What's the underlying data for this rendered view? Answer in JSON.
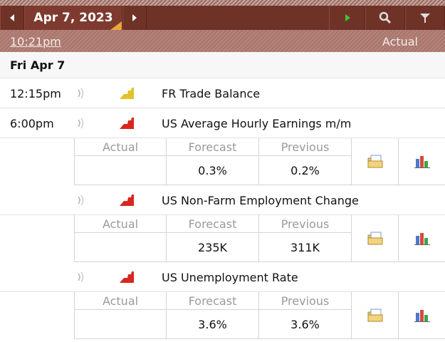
{
  "toolbar": {
    "date": "Apr 7, 2023"
  },
  "subbar": {
    "current_time": "10:21pm",
    "column": "Actual"
  },
  "day": {
    "label": "Fri Apr 7",
    "events": [
      {
        "time": "12:15pm",
        "impact_color": "#e3c22c",
        "title": "FR Trade Balance"
      },
      {
        "time": "6:00pm",
        "impact_color": "#d8271f",
        "title": "US Average Hourly Earnings m/m",
        "details": {
          "labels": [
            "Actual",
            "Forecast",
            "Previous"
          ],
          "forecast": "0.3%",
          "previous": "0.2%"
        }
      },
      {
        "impact_color": "#d8271f",
        "title": "US Non-Farm Employment Change",
        "details": {
          "labels": [
            "Actual",
            "Forecast",
            "Previous"
          ],
          "forecast": "235K",
          "previous": "311K"
        }
      },
      {
        "impact_color": "#d8271f",
        "title": "US Unemployment Rate",
        "details": {
          "labels": [
            "Actual",
            "Forecast",
            "Previous"
          ],
          "forecast": "3.6%",
          "previous": "3.6%"
        }
      }
    ]
  }
}
